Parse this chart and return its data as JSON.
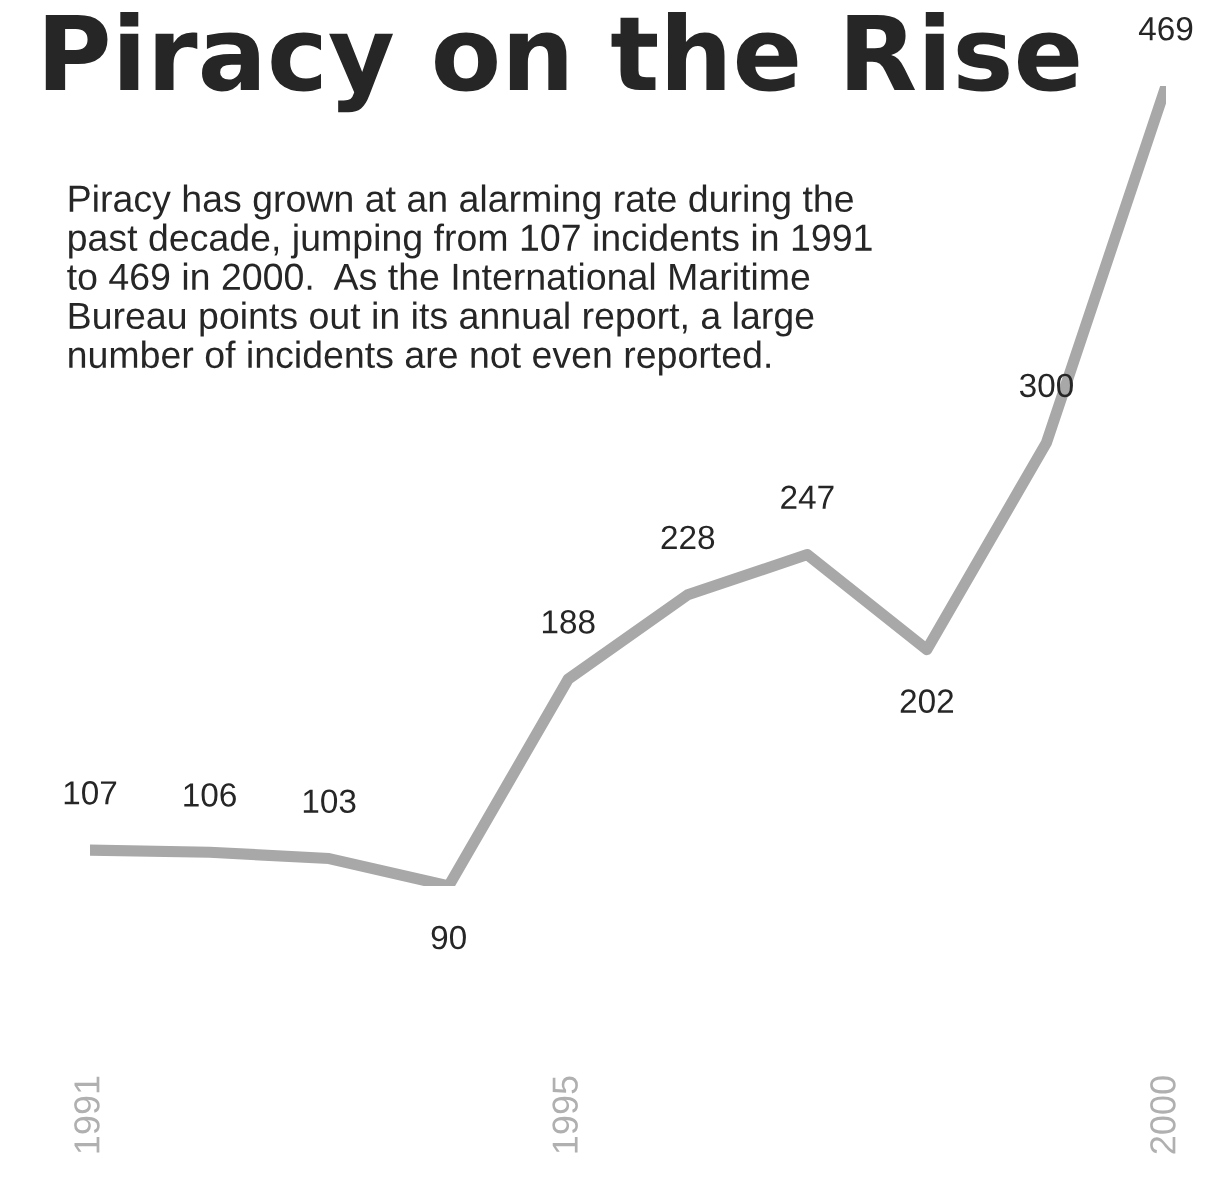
{
  "chart_data": {
    "type": "line",
    "title": "Piracy on the Rise",
    "subtitle": "Piracy has grown at an alarming rate during the\npast decade, jumping from 107 incidents in 1991\nto 469 in 2000.  As the International Maritime\nBureau points out in its annual report, a large\nnumber of incidents are not even reported.",
    "x": [
      1991,
      1992,
      1993,
      1994,
      1995,
      1996,
      1997,
      1998,
      1999,
      2000
    ],
    "series": [
      {
        "color": "#a8a8a8",
        "values": [
          107,
          106,
          103,
          90,
          188,
          228,
          247,
          202,
          300,
          469
        ]
      }
    ],
    "xlim": [
      1991,
      2000
    ],
    "xticks": [
      1991,
      1995,
      2000
    ],
    "data_labels": true,
    "grid": false,
    "tick_labels": "x",
    "marker": "none",
    "line_style": "solid"
  }
}
